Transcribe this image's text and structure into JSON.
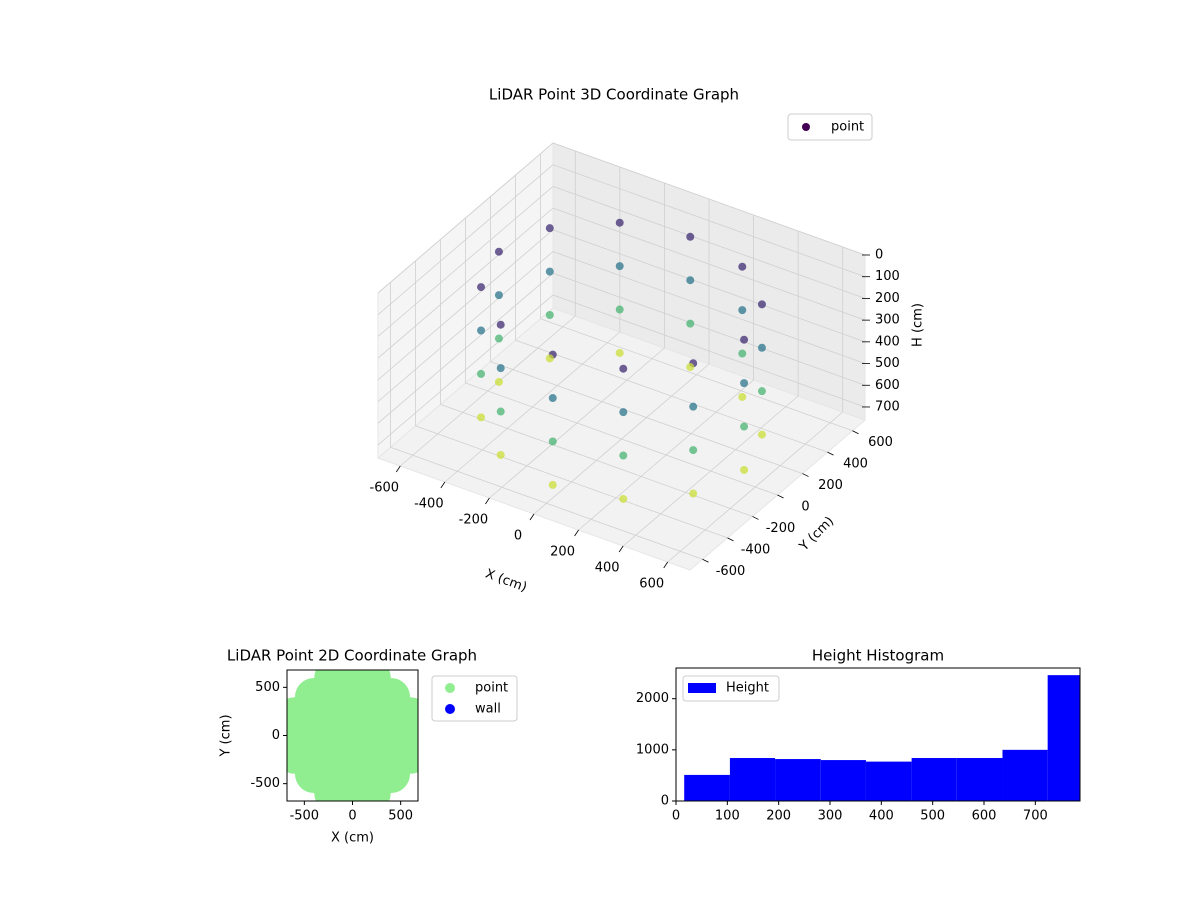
{
  "chart_data": [
    {
      "type": "scatter3d",
      "title": "LiDAR Point 3D Coordinate Graph",
      "xlabel": "X (cm)",
      "ylabel": "Y (cm)",
      "zlabel": "H (cm)",
      "xlim": [
        -700,
        700
      ],
      "ylim": [
        -700,
        700
      ],
      "zlim": [
        760,
        0
      ],
      "xticks": [
        -600,
        -400,
        -200,
        0,
        200,
        400,
        600
      ],
      "yticks": [
        -600,
        -400,
        -200,
        0,
        200,
        400,
        600
      ],
      "zticks": [
        0,
        100,
        200,
        300,
        400,
        500,
        600,
        700
      ],
      "colormap": "viridis",
      "legend": "upper right",
      "grid": true,
      "series": [
        {
          "name": "point",
          "color": "#440154",
          "x": [
            550,
            476,
            275,
            0,
            -275,
            -476,
            -550,
            -476,
            -275,
            0,
            275,
            476,
            550,
            476,
            275,
            0,
            -275,
            -476,
            -550,
            -476,
            -275,
            0,
            275,
            476,
            550,
            476,
            275,
            0,
            -275,
            -476,
            -550,
            -476,
            -275,
            0,
            275,
            476,
            550,
            476,
            275,
            0,
            -275,
            -476,
            -550,
            -476,
            -275,
            0,
            275,
            476
          ],
          "y": [
            0,
            275,
            476,
            550,
            476,
            275,
            0,
            -275,
            -476,
            -550,
            -476,
            -275,
            0,
            275,
            476,
            550,
            476,
            275,
            0,
            -275,
            -476,
            -550,
            -476,
            -275,
            0,
            275,
            476,
            550,
            476,
            275,
            0,
            -275,
            -476,
            -550,
            -476,
            -275,
            0,
            275,
            476,
            550,
            476,
            275,
            0,
            -275,
            -476,
            -550,
            -476,
            -275
          ],
          "z": [
            100,
            100,
            100,
            100,
            100,
            100,
            100,
            100,
            100,
            100,
            100,
            100,
            300,
            300,
            300,
            300,
            300,
            300,
            300,
            300,
            300,
            300,
            300,
            300,
            500,
            500,
            500,
            500,
            500,
            500,
            500,
            500,
            500,
            500,
            500,
            500,
            700,
            700,
            700,
            700,
            700,
            700,
            700,
            700,
            700,
            700,
            700,
            700
          ]
        }
      ]
    },
    {
      "type": "scatter",
      "title": "LiDAR Point 2D Coordinate Graph",
      "xlabel": "X (cm)",
      "ylabel": "Y (cm)",
      "xlim": [
        -680,
        680
      ],
      "ylim": [
        -680,
        680
      ],
      "xticks": [
        -500,
        0,
        500
      ],
      "yticks": [
        -500,
        0,
        500
      ],
      "legend": "outside right",
      "series": [
        {
          "name": "point",
          "color": "#90ee90",
          "x": [
            -200,
            0,
            200,
            -400,
            -200,
            0,
            200,
            400,
            -600,
            -400,
            -200,
            0,
            200,
            400,
            600,
            -600,
            -400,
            -200,
            0,
            200,
            400,
            600,
            -600,
            -400,
            -200,
            0,
            200,
            400,
            600,
            -400,
            -200,
            0,
            200,
            400,
            -200,
            0,
            200
          ],
          "y": [
            600,
            600,
            600,
            400,
            400,
            400,
            400,
            400,
            200,
            200,
            200,
            200,
            200,
            200,
            200,
            0,
            0,
            0,
            0,
            0,
            0,
            0,
            -200,
            -200,
            -200,
            -200,
            -200,
            -200,
            -200,
            -400,
            -400,
            -400,
            -400,
            -400,
            -600,
            -600,
            -600
          ]
        },
        {
          "name": "wall",
          "color": "#0000ff",
          "x": [],
          "y": []
        }
      ]
    },
    {
      "type": "histogram",
      "title": "Height Histogram",
      "name": "Height",
      "color": "#0000ff",
      "bins": [
        16,
        105,
        193,
        282,
        370,
        459,
        547,
        636,
        724,
        787
      ],
      "values": [
        510,
        840,
        820,
        800,
        770,
        840,
        840,
        1000,
        2460
      ],
      "xlim": [
        0,
        787
      ],
      "ylim": [
        0,
        2600
      ],
      "xticks": [
        0,
        100,
        200,
        300,
        400,
        500,
        600,
        700
      ],
      "yticks": [
        0,
        1000,
        2000
      ],
      "legend": "upper left"
    }
  ]
}
